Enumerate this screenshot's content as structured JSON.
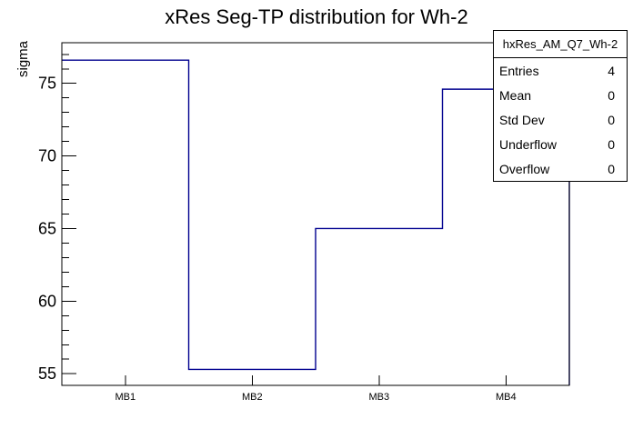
{
  "chart_data": {
    "type": "bar",
    "style": "step-histogram-outline",
    "title": "xRes Seg-TP distribution for Wh-2",
    "xlabel": "",
    "ylabel": "sigma",
    "categories": [
      "MB1",
      "MB2",
      "MB3",
      "MB4"
    ],
    "values": [
      76.6,
      55.3,
      65.0,
      74.6
    ],
    "ylim": [
      54.2,
      77.8
    ],
    "yticks": [
      55,
      60,
      65,
      70,
      75
    ],
    "y_minor_tick_step": 1,
    "grid": false,
    "legend": false
  },
  "stats": {
    "title": "hxRes_AM_Q7_Wh-2",
    "rows": [
      {
        "label": "Entries",
        "value": "4"
      },
      {
        "label": "Mean",
        "value": "0"
      },
      {
        "label": "Std Dev",
        "value": "0"
      },
      {
        "label": "Underflow",
        "value": "0"
      },
      {
        "label": "Overflow",
        "value": "0"
      }
    ]
  },
  "colors": {
    "histogram_line": "#00008f",
    "frame": "#000000",
    "tick": "#000000",
    "text": "#000000",
    "background": "#ffffff",
    "stats_background": "#ffffff"
  }
}
